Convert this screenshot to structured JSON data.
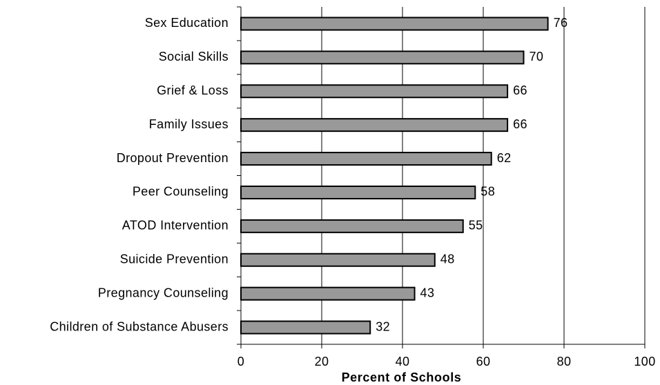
{
  "chart_data": {
    "type": "bar",
    "orientation": "horizontal",
    "categories": [
      "Sex Education",
      "Social Skills",
      "Grief & Loss",
      "Family Issues",
      "Dropout Prevention",
      "Peer Counseling",
      "ATOD Intervention",
      "Suicide Prevention",
      "Pregnancy Counseling",
      "Children of Substance Abusers"
    ],
    "values": [
      76,
      70,
      66,
      66,
      62,
      58,
      55,
      48,
      43,
      32
    ],
    "data_labels": [
      "76",
      "70",
      "66",
      "66",
      "62",
      "58",
      "55",
      "48",
      "43",
      "32"
    ],
    "title": "",
    "xlabel": "Percent of Schools",
    "ylabel": "",
    "xlim": [
      0,
      100
    ],
    "xticks": [
      0,
      20,
      40,
      60,
      80,
      100
    ],
    "xtick_labels": [
      "0",
      "20",
      "40",
      "60",
      "80",
      "100"
    ],
    "grid": "vertical",
    "legend": "none",
    "colors": {
      "bar_fill": "#999999",
      "bar_stroke": "#000000",
      "grid": "#000000",
      "text": "#000000"
    }
  }
}
